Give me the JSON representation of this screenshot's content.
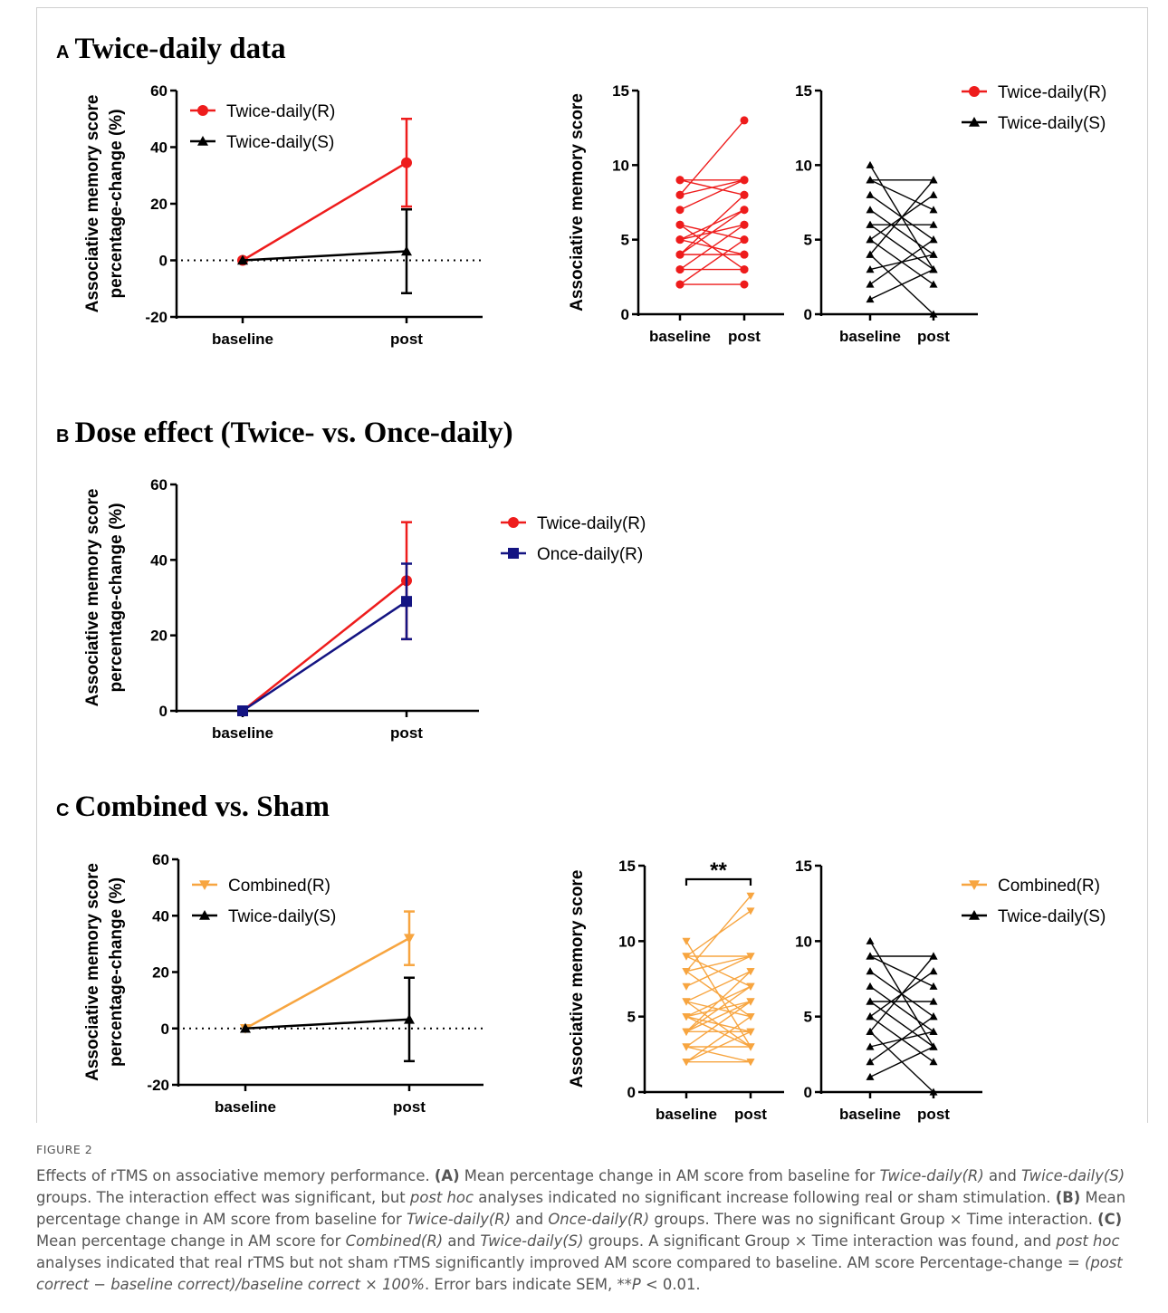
{
  "panels": {
    "A": {
      "letter": "A",
      "title": "Twice-daily data"
    },
    "B": {
      "letter": "B",
      "title": "Dose effect (Twice- vs. Once-daily)"
    },
    "C": {
      "letter": "C",
      "title": "Combined vs. Sham"
    }
  },
  "colors": {
    "red": "#ee1c1c",
    "black": "#000000",
    "navy": "#141482",
    "orange": "#f7a540"
  },
  "chart_data": [
    {
      "id": "A-percent-change",
      "type": "line",
      "categories": [
        "baseline",
        "post"
      ],
      "ylabel": [
        "Associative memory score",
        "percentage-change (%)"
      ],
      "ylim": [
        -20,
        60
      ],
      "yticks": [
        -20,
        0,
        20,
        40,
        60
      ],
      "zero_line": "dotted",
      "legend_position": "top-left",
      "series": [
        {
          "name": "Twice-daily(R)",
          "color": "#ee1c1c",
          "marker": "circle",
          "values": [
            0,
            34.5
          ],
          "sem": [
            0,
            15.5
          ]
        },
        {
          "name": "Twice-daily(S)",
          "color": "#000000",
          "marker": "triangle",
          "values": [
            0,
            3.2
          ],
          "sem": [
            0,
            14.8
          ]
        }
      ]
    },
    {
      "id": "A-individual-real",
      "type": "line",
      "categories": [
        "baseline",
        "post"
      ],
      "ylabel": "Associative memory score",
      "ylim": [
        0,
        15
      ],
      "yticks": [
        0,
        5,
        10,
        15
      ],
      "color": "#ee1c1c",
      "marker": "circle",
      "pairs": [
        [
          2,
          2
        ],
        [
          2,
          5
        ],
        [
          3,
          3
        ],
        [
          3,
          6
        ],
        [
          4,
          4
        ],
        [
          4,
          7
        ],
        [
          4,
          8
        ],
        [
          5,
          4
        ],
        [
          5,
          6
        ],
        [
          5,
          7
        ],
        [
          6,
          3
        ],
        [
          6,
          5
        ],
        [
          7,
          9
        ],
        [
          8,
          13
        ],
        [
          8,
          9
        ],
        [
          9,
          9
        ],
        [
          9,
          8
        ]
      ]
    },
    {
      "id": "A-individual-sham",
      "type": "line",
      "categories": [
        "baseline",
        "post"
      ],
      "ylim": [
        0,
        15
      ],
      "yticks": [
        0,
        5,
        10,
        15
      ],
      "color": "#000000",
      "marker": "triangle",
      "legend_position": "right",
      "legend": [
        {
          "name": "Twice-daily(R)",
          "color": "#ee1c1c",
          "marker": "circle"
        },
        {
          "name": "Twice-daily(S)",
          "color": "#000000",
          "marker": "triangle"
        }
      ],
      "pairs": [
        [
          1,
          3
        ],
        [
          2,
          5
        ],
        [
          3,
          4
        ],
        [
          4,
          9
        ],
        [
          4,
          0
        ],
        [
          5,
          8
        ],
        [
          5,
          2
        ],
        [
          6,
          6
        ],
        [
          6,
          3
        ],
        [
          7,
          4
        ],
        [
          8,
          5
        ],
        [
          9,
          7
        ],
        [
          9,
          9
        ],
        [
          10,
          3
        ]
      ]
    },
    {
      "id": "B-dose-effect",
      "type": "line",
      "categories": [
        "baseline",
        "post"
      ],
      "ylabel": [
        "Associative memory score",
        "percentage-change (%)"
      ],
      "ylim": [
        0,
        60
      ],
      "yticks": [
        0,
        20,
        40,
        60
      ],
      "legend_position": "right",
      "series": [
        {
          "name": "Twice-daily(R)",
          "color": "#ee1c1c",
          "marker": "circle",
          "values": [
            0,
            34.5
          ],
          "sem": [
            0,
            15.5
          ]
        },
        {
          "name": "Once-daily(R)",
          "color": "#141482",
          "marker": "square",
          "values": [
            0,
            29
          ],
          "sem": [
            0,
            10
          ]
        }
      ]
    },
    {
      "id": "C-percent-change",
      "type": "line",
      "categories": [
        "baseline",
        "post"
      ],
      "ylabel": [
        "Associative memory score",
        "percentage-change (%)"
      ],
      "ylim": [
        -20,
        60
      ],
      "yticks": [
        -20,
        0,
        20,
        40,
        60
      ],
      "zero_line": "dotted",
      "legend_position": "top-left",
      "series": [
        {
          "name": "Combined(R)",
          "color": "#f7a540",
          "marker": "triangle-down",
          "values": [
            0,
            32
          ],
          "sem": [
            0,
            9.5
          ]
        },
        {
          "name": "Twice-daily(S)",
          "color": "#000000",
          "marker": "triangle",
          "values": [
            0,
            3.2
          ],
          "sem": [
            0,
            14.8
          ]
        }
      ]
    },
    {
      "id": "C-individual-real",
      "type": "line",
      "categories": [
        "baseline",
        "post"
      ],
      "ylabel": "Associative memory score",
      "ylim": [
        0,
        15
      ],
      "yticks": [
        0,
        5,
        10,
        15
      ],
      "color": "#f7a540",
      "marker": "triangle-down",
      "annotation": "**",
      "pairs": [
        [
          2,
          2
        ],
        [
          2,
          5
        ],
        [
          3,
          3
        ],
        [
          3,
          6
        ],
        [
          4,
          4
        ],
        [
          4,
          7
        ],
        [
          4,
          8
        ],
        [
          5,
          4
        ],
        [
          5,
          6
        ],
        [
          5,
          7
        ],
        [
          6,
          3
        ],
        [
          6,
          5
        ],
        [
          7,
          9
        ],
        [
          8,
          13
        ],
        [
          8,
          9
        ],
        [
          9,
          9
        ],
        [
          9,
          12
        ],
        [
          10,
          3
        ],
        [
          2,
          4
        ],
        [
          3,
          2
        ],
        [
          4,
          6
        ],
        [
          5,
          3
        ],
        [
          6,
          8
        ],
        [
          8,
          5
        ],
        [
          9,
          7
        ]
      ]
    },
    {
      "id": "C-individual-sham",
      "type": "line",
      "categories": [
        "baseline",
        "post"
      ],
      "ylim": [
        0,
        15
      ],
      "yticks": [
        0,
        5,
        10,
        15
      ],
      "color": "#000000",
      "marker": "triangle",
      "legend_position": "right",
      "legend": [
        {
          "name": "Combined(R)",
          "color": "#f7a540",
          "marker": "triangle-down"
        },
        {
          "name": "Twice-daily(S)",
          "color": "#000000",
          "marker": "triangle"
        }
      ],
      "pairs": [
        [
          1,
          3
        ],
        [
          2,
          5
        ],
        [
          3,
          4
        ],
        [
          4,
          9
        ],
        [
          4,
          0
        ],
        [
          5,
          8
        ],
        [
          5,
          2
        ],
        [
          6,
          6
        ],
        [
          6,
          3
        ],
        [
          7,
          4
        ],
        [
          8,
          5
        ],
        [
          9,
          7
        ],
        [
          9,
          9
        ],
        [
          10,
          3
        ]
      ]
    }
  ],
  "caption": {
    "figure_label": "FIGURE 2",
    "lead": "Effects of rTMS on associative memory performance.",
    "a_tag": "(A)",
    "a_text1": "Mean percentage change in AM score from baseline for",
    "a_g1": "Twice-daily(R)",
    "a_and": "and",
    "a_g2": "Twice-daily(S)",
    "a_text2": "groups. The interaction effect was significant, but",
    "a_posthoc": "post hoc",
    "a_text3": "analyses indicated no significant increase following real or sham stimulation.",
    "b_tag": "(B)",
    "b_text1": "Mean percentage change in AM score from baseline for",
    "b_g1": "Twice-daily(R)",
    "b_and": "and",
    "b_g2": "Once-daily(R)",
    "b_text2": "groups. There was no significant Group × Time interaction.",
    "c_tag": "(C)",
    "c_text1": "Mean percentage change in AM score for",
    "c_g1": "Combined(R)",
    "c_and": "and",
    "c_g2": "Twice-daily(S)",
    "c_text2": "groups. A significant Group × Time interaction was found, and",
    "c_posthoc": "post hoc",
    "c_text3": "analyses indicated that real rTMS but not sham rTMS significantly improved AM score compared to baseline.",
    "formula_pre": "AM score Percentage-change =",
    "formula": "(post correct − baseline correct)/baseline correct × 100%",
    "error_note": ". Error bars indicate SEM, **",
    "p_symbol": "P",
    "p_value": " < 0.01."
  }
}
